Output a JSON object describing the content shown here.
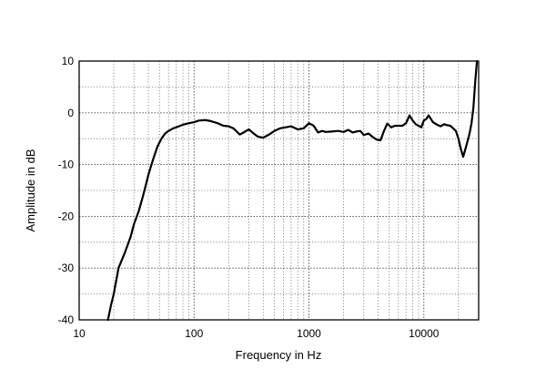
{
  "chart_data": {
    "type": "line",
    "title": "",
    "xlabel": "Frequency in Hz",
    "ylabel": "Amplitude in dB",
    "xscale": "log",
    "xlim": [
      10,
      30000
    ],
    "ylim": [
      -40,
      10
    ],
    "grid": true,
    "x_ticks": [
      10,
      100,
      1000,
      10000
    ],
    "x_tick_labels": [
      "10",
      "100",
      "1000",
      "10000"
    ],
    "y_ticks": [
      10,
      0,
      -10,
      -20,
      -30,
      -40
    ],
    "y_tick_labels": [
      "10",
      "0",
      "-10",
      "-20",
      "-30",
      "-40"
    ],
    "series": [
      {
        "name": "",
        "x": [
          17.8,
          19,
          20,
          22,
          25,
          28,
          30,
          33,
          36,
          38,
          40,
          44,
          48,
          52,
          56,
          60,
          66,
          72,
          80,
          90,
          100,
          110,
          125,
          140,
          160,
          180,
          200,
          220,
          250,
          270,
          300,
          330,
          360,
          400,
          450,
          500,
          560,
          630,
          700,
          800,
          900,
          1000,
          1100,
          1200,
          1300,
          1400,
          1600,
          1800,
          2000,
          2200,
          2400,
          2600,
          2800,
          3000,
          3300,
          3600,
          3900,
          4200,
          4500,
          4800,
          5200,
          5600,
          6000,
          6500,
          7000,
          7500,
          8000,
          8500,
          9000,
          9500,
          10000,
          10500,
          11000,
          12000,
          13000,
          14000,
          15000,
          16000,
          17000,
          18000,
          19000,
          20000,
          21000,
          22000,
          23000,
          24000,
          25000,
          26000,
          27000,
          28000,
          29000
        ],
        "values": [
          -40,
          -37,
          -35,
          -30,
          -27,
          -24,
          -21.5,
          -19,
          -16,
          -14,
          -12,
          -9,
          -6.5,
          -5,
          -4,
          -3.5,
          -3,
          -2.7,
          -2.3,
          -2,
          -1.8,
          -1.5,
          -1.4,
          -1.6,
          -2,
          -2.5,
          -2.6,
          -3,
          -4.2,
          -3.8,
          -3.2,
          -4,
          -4.6,
          -4.8,
          -4.2,
          -3.5,
          -3,
          -2.8,
          -2.6,
          -3.2,
          -3,
          -2,
          -2.5,
          -3.8,
          -3.5,
          -3.7,
          -3.6,
          -3.5,
          -3.7,
          -3.3,
          -3.8,
          -3.6,
          -3.5,
          -4.3,
          -4,
          -4.7,
          -5.2,
          -5.3,
          -3.5,
          -2.1,
          -2.8,
          -2.5,
          -2.5,
          -2.5,
          -2,
          -0.5,
          -1.5,
          -2.2,
          -2.5,
          -2.8,
          -1.5,
          -1.2,
          -0.5,
          -1.8,
          -2.3,
          -2.6,
          -2.2,
          -2.4,
          -2.5,
          -3,
          -3.5,
          -5,
          -7,
          -8.5,
          -7,
          -5.5,
          -4,
          -2,
          1,
          6,
          10
        ]
      }
    ]
  }
}
